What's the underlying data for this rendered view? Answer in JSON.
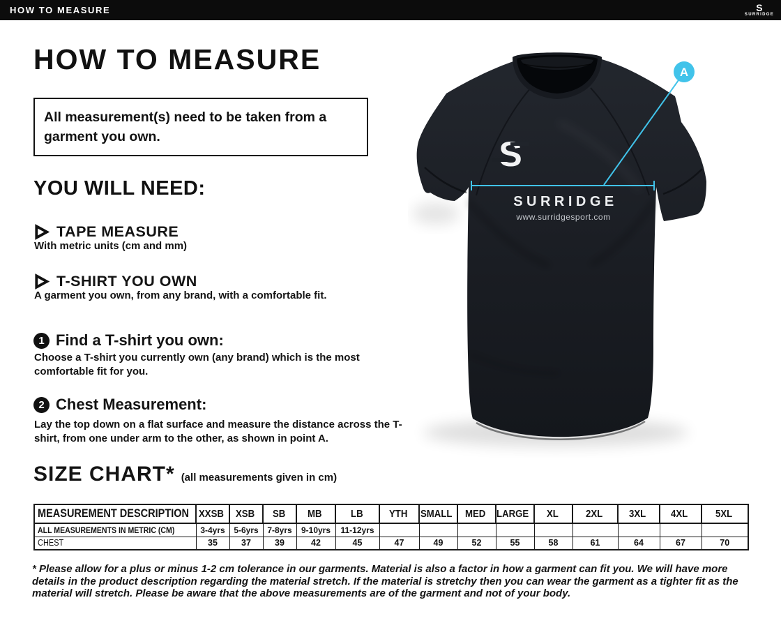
{
  "theme": {
    "accent": "#41c3ea",
    "ink": "#141414",
    "bar_bg": "#0c0c0c"
  },
  "topbar": {
    "title": "HOW TO MEASURE",
    "logo_s": "S",
    "logo_name": "SURRIDGE"
  },
  "main": {
    "title": "HOW TO MEASURE",
    "notice": "All measurement(s) need to be taken from a garment you own.",
    "you_will_need": {
      "heading": "YOU WILL NEED:",
      "items": [
        {
          "title": "TAPE MEASURE",
          "desc": "With metric units (cm and mm)"
        },
        {
          "title": "T-SHIRT YOU OWN",
          "desc": "A garment you own, from any brand, with a comfortable fit."
        }
      ]
    },
    "steps": [
      {
        "num": "1",
        "title": "Find a T-shirt you own:",
        "desc": "Choose a T-shirt you currently own (any brand) which is the most comfortable fit for you."
      },
      {
        "num": "2",
        "title": "Chest Measurement:",
        "desc": "Lay the top down on a flat surface and measure the distance across the T-shirt, from one under arm to the other, as shown in point A."
      }
    ],
    "size_chart": {
      "heading": "SIZE CHART*",
      "subheading": "(all measurements given in cm)",
      "table": {
        "columns": [
          "MEASUREMENT DESCRIPTION",
          "XXSB",
          "XSB",
          "SB",
          "MB",
          "LB",
          "YTH",
          "SMALL",
          "MED",
          "LARGE",
          "XL",
          "2XL",
          "3XL",
          "4XL",
          "5XL"
        ],
        "rows": [
          {
            "label": "ALL MEASUREMENTS IN METRIC (CM)",
            "values": [
              "3-4yrs",
              "5-6yrs",
              "7-8yrs",
              "9-10yrs",
              "11-12yrs",
              "",
              "",
              "",
              "",
              "",
              "",
              "",
              "",
              ""
            ]
          },
          {
            "label": "CHEST",
            "values": [
              "35",
              "37",
              "39",
              "42",
              "45",
              "47",
              "49",
              "52",
              "55",
              "58",
              "61",
              "64",
              "67",
              "70"
            ]
          }
        ]
      }
    },
    "footnote": "* Please allow for a plus or minus 1-2 cm tolerance in our garments. Material is also a factor in how a garment can fit you. We will have more details in the product description regarding the material stretch.  If the material is stretchy then you can wear the garment as a tighter fit as the material will stretch.  Please be aware that the above measurements are of the garment and not of your body."
  },
  "shirt": {
    "logo_s": "S",
    "brand": "SURRIDGE",
    "website": "www.surridgesport.com",
    "point_label": "A"
  }
}
